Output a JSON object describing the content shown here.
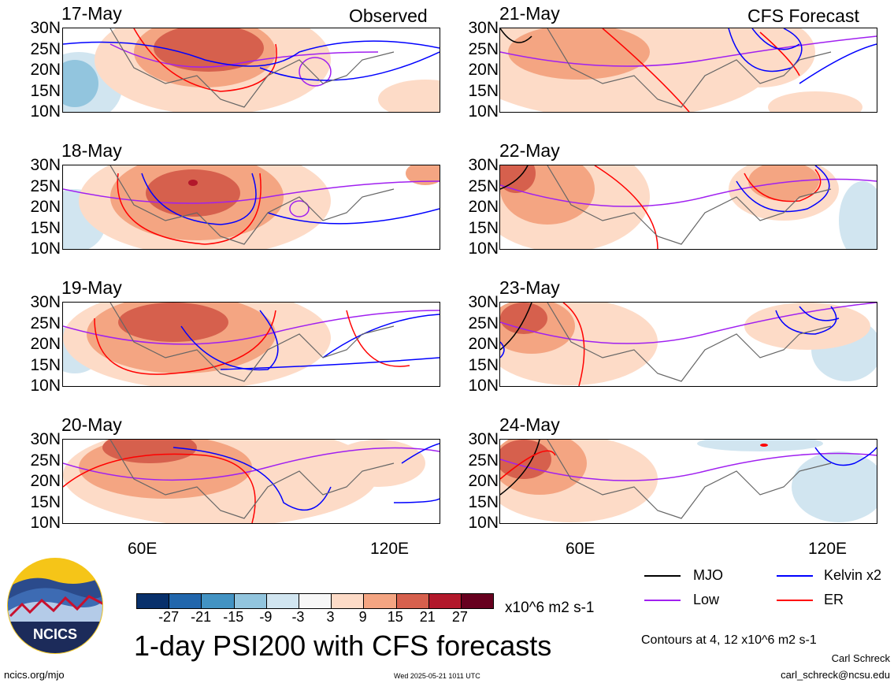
{
  "corner_labels": {
    "observed": "Observed",
    "forecast": "CFS Forecast"
  },
  "panels_left": [
    {
      "date": "17-May"
    },
    {
      "date": "18-May"
    },
    {
      "date": "19-May"
    },
    {
      "date": "20-May"
    }
  ],
  "panels_right": [
    {
      "date": "21-May"
    },
    {
      "date": "22-May"
    },
    {
      "date": "23-May"
    },
    {
      "date": "24-May"
    }
  ],
  "lat_labels": [
    "30N",
    "25N",
    "20N",
    "15N",
    "10N"
  ],
  "lon_labels": [
    "60E",
    "120E"
  ],
  "colorbar": {
    "colors": [
      "#08306b",
      "#2166ac",
      "#4393c3",
      "#92c5de",
      "#d1e5f0",
      "#f7f7f7",
      "#fddbc7",
      "#f4a582",
      "#d6604d",
      "#b2182b",
      "#67001f"
    ],
    "ticks": [
      "-27",
      "-21",
      "-15",
      "-9",
      "-3",
      "3",
      "9",
      "15",
      "21",
      "27"
    ],
    "units": "x10^6 m2 s-1"
  },
  "legend": {
    "items": [
      {
        "label": "MJO",
        "color": "#000000"
      },
      {
        "label": "Kelvin x2",
        "color": "#0000ff"
      },
      {
        "label": "Low",
        "color": "#a020f0"
      },
      {
        "label": "ER",
        "color": "#ff0000"
      }
    ],
    "contours_note": "Contours at 4, 12 x10^6 m2 s-1"
  },
  "title": "1-day PSI200 with CFS forecasts",
  "logo_text": "NCICS",
  "footer": {
    "url": "ncics.org/mjo",
    "timestamp": "Wed 2025-05-21 1011 UTC",
    "author": "Carl Schreck",
    "email": "carl_schreck@ncsu.edu"
  }
}
